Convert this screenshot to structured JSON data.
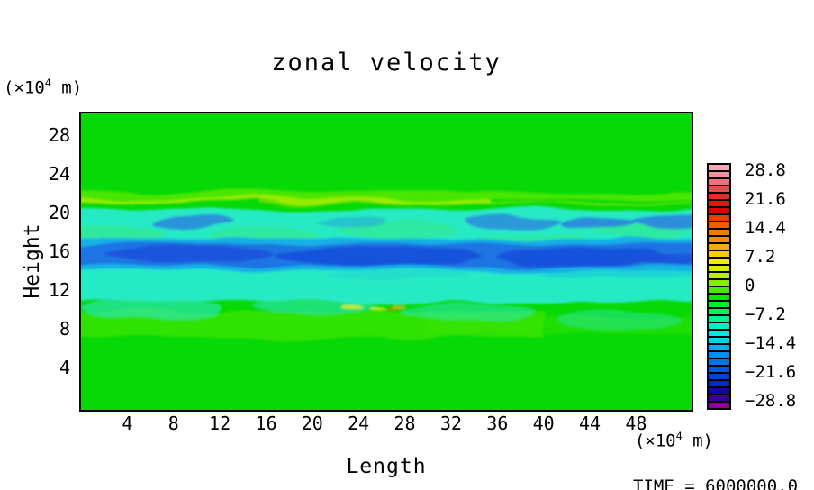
{
  "page": {
    "background": "#FFFFFF"
  },
  "title": "zonal velocity",
  "axes": {
    "y_label": "Height",
    "x_label": "Length",
    "unit_prefix": "(×10",
    "unit_sup": "4",
    "unit_suffix": " m)"
  },
  "time_label": "TIME = 6000000.0",
  "chart_data": {
    "type": "heatmap",
    "title": "zonal velocity",
    "xlabel": "Length",
    "ylabel": "Height",
    "x_unit": "(×10^4 m)",
    "y_unit": "(×10^4 m)",
    "time": 6000000.0,
    "grid": false,
    "x_axis": {
      "ticks": [
        4,
        8,
        12,
        16,
        20,
        24,
        28,
        32,
        36,
        40,
        44,
        48
      ],
      "range": [
        0,
        52.8
      ]
    },
    "y_axis": {
      "ticks": [
        28,
        24,
        20,
        16,
        12,
        8,
        4
      ],
      "range": [
        -0.4,
        30.2
      ]
    },
    "colorbar": {
      "position": "right",
      "tick_labels": [
        "28.8",
        "21.6",
        "14.4",
        "7.2",
        "0",
        "−7.2",
        "−14.4",
        "−21.6",
        "−28.8"
      ],
      "tick_values": [
        28.8,
        21.6,
        14.4,
        7.2,
        0,
        -7.2,
        -14.4,
        -21.6,
        -28.8
      ],
      "level_max": 30.6,
      "level_min": -30.6,
      "level_step": 1.8,
      "segment_colors": [
        "#F4AAB4",
        "#F1939C",
        "#EE7277",
        "#EB4A4C",
        "#E82A28",
        "#E51309",
        "#E30000",
        "#E93E00",
        "#EE5F00",
        "#F07B00",
        "#F29200",
        "#F4AD00",
        "#F6CC00",
        "#F4EC00",
        "#D8F000",
        "#B4F000",
        "#84F000",
        "#46EC00",
        "#00E800",
        "#00EC28",
        "#00F060",
        "#00F096",
        "#00F0C8",
        "#00E8E4",
        "#00D2F0",
        "#00AEF4",
        "#008CEC",
        "#0074E4",
        "#005CDA",
        "#0044D2",
        "#0028C4",
        "#1400AE",
        "#3A0096",
        "#8A0098"
      ]
    },
    "features": [
      {
        "name": "background field",
        "height_range": [
          0,
          30
        ],
        "approx_value": -2,
        "color_note": "uniform green"
      },
      {
        "name": "upper shear streak",
        "height_range": [
          20.5,
          21.5
        ],
        "approx_value": 2,
        "color_note": "thin yellow-green streak across width"
      },
      {
        "name": "upper cyan band",
        "height_range": [
          17.5,
          20
        ],
        "approx_value": -9,
        "color_note": "cyan with dark-blue patches ~ -16 near Length 8, 36-45, 48-52"
      },
      {
        "name": "jet core",
        "height_range": [
          14.5,
          16.5
        ],
        "approx_value": -18,
        "color_note": "dark blue wavy band full width, minima ~ -21"
      },
      {
        "name": "lower cyan band",
        "height_range": [
          11.5,
          14.5
        ],
        "approx_value": -8,
        "color_note": "cyan fading to green"
      },
      {
        "name": "weak westerly band",
        "height_range": [
          7.5,
          10
        ],
        "approx_value": 3,
        "color_note": "light green band; small yellow/orange specks ~ +7 near Length 28-34, Height 9"
      }
    ],
    "plot_colors": {
      "base": "#06D906",
      "band_light_green": "#3CE400",
      "streak_green": "#5AE800",
      "streak_yellow": "#B2EE00",
      "band_cyan": "#25EAC4",
      "wisp_green": "#35E87E",
      "wisp_cyan": "#2EE8CD",
      "blob_blue": "#2E7EDE",
      "core_outer": "#14AEE8",
      "core_mid": "#1C74E2",
      "core_dark": "#1A50DC",
      "speck_yellow": "#E2EE00",
      "speck_gold": "#F0B000",
      "speck_orange": "#F07800"
    }
  }
}
